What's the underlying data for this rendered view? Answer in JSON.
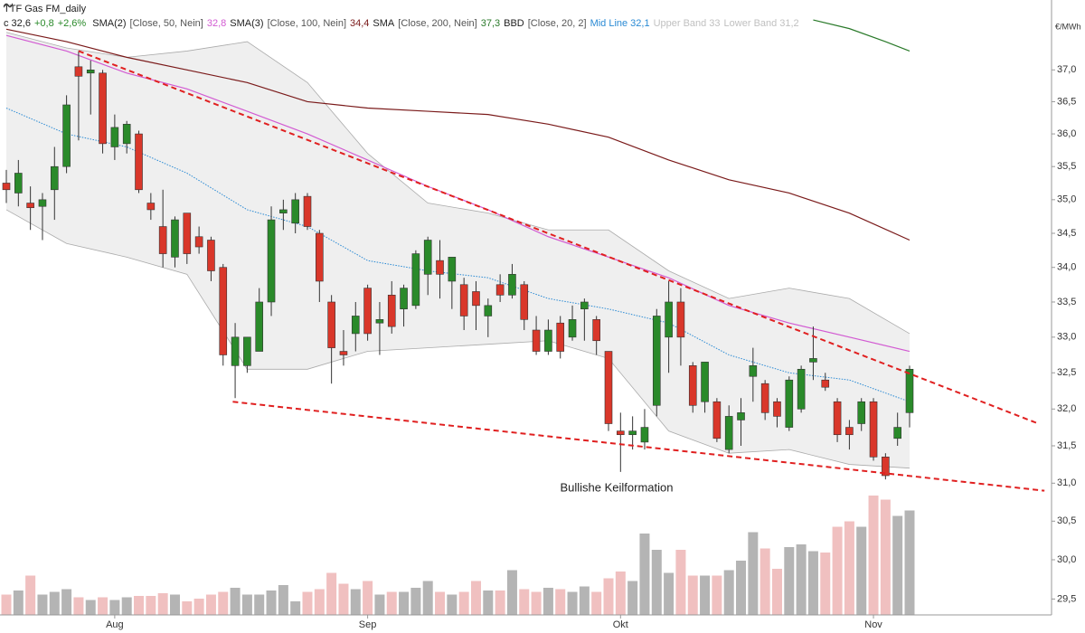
{
  "chart_data": {
    "type": "candlestick",
    "title": "TTF Gas FM_daily",
    "unit_label": "€/MWh",
    "quote": {
      "close": "c 32,6",
      "change": "+0,8",
      "change_pct": "+2,6%",
      "change_color": "#2a8a2a"
    },
    "log_scale": true,
    "ylim": [
      29.3,
      37.83
    ],
    "yticks": [
      {
        "value": 29.5,
        "label": "29,5"
      },
      {
        "value": 30,
        "label": "30,0"
      },
      {
        "value": 30.5,
        "label": "30,5"
      },
      {
        "value": 31,
        "label": "31,0"
      },
      {
        "value": 31.5,
        "label": "31,5"
      },
      {
        "value": 32,
        "label": "32,0"
      },
      {
        "value": 32.5,
        "label": "32,5"
      },
      {
        "value": 33,
        "label": "33,0"
      },
      {
        "value": 33.5,
        "label": "33,5"
      },
      {
        "value": 34,
        "label": "34,0"
      },
      {
        "value": 34.5,
        "label": "34,5"
      },
      {
        "value": 35,
        "label": "35,0"
      },
      {
        "value": 35.5,
        "label": "35,5"
      },
      {
        "value": 36,
        "label": "36,0"
      },
      {
        "value": 36.5,
        "label": "36,5"
      },
      {
        "value": 37,
        "label": "37,0"
      }
    ],
    "categories": [
      null,
      null,
      null,
      null,
      null,
      null,
      null,
      null,
      null,
      "Aug",
      null,
      null,
      null,
      null,
      null,
      null,
      null,
      null,
      null,
      null,
      null,
      null,
      null,
      null,
      null,
      null,
      null,
      null,
      null,
      null,
      "Sep",
      null,
      null,
      null,
      null,
      null,
      null,
      null,
      null,
      null,
      null,
      null,
      null,
      null,
      null,
      null,
      null,
      null,
      null,
      null,
      null,
      "Okt",
      null,
      null,
      null,
      null,
      null,
      null,
      null,
      null,
      null,
      null,
      null,
      null,
      null,
      null,
      null,
      null,
      null,
      null,
      null,
      null,
      "Nov",
      null,
      null,
      null
    ],
    "up_color": "#2a8a2a",
    "down_color": "#d9372a",
    "open": [
      35.25,
      35.1,
      34.95,
      34.9,
      35.15,
      35.5,
      37.05,
      36.95,
      36.95,
      35.8,
      35.85,
      36.0,
      34.95,
      34.6,
      34.15,
      34.8,
      34.45,
      34.4,
      34.0,
      32.6,
      32.6,
      32.8,
      33.5,
      34.8,
      34.65,
      35.05,
      34.5,
      33.5,
      32.8,
      33.05,
      33.7,
      33.2,
      33.6,
      33.4,
      33.45,
      33.9,
      34.1,
      33.8,
      33.75,
      33.65,
      33.3,
      33.75,
      33.6,
      33.75,
      33.1,
      32.8,
      33.2,
      33.0,
      33.4,
      33.25,
      32.8,
      31.7,
      31.65,
      31.55,
      32.05,
      33.0,
      33.5,
      32.6,
      32.1,
      32.1,
      31.45,
      31.85,
      32.45,
      32.35,
      32.1,
      31.75,
      32.0,
      32.65,
      32.4,
      32.1,
      31.75,
      31.8,
      32.1,
      31.35,
      31.6,
      31.95
    ],
    "high": [
      35.45,
      35.6,
      35.2,
      35.1,
      35.8,
      36.6,
      37.3,
      37.15,
      37.0,
      36.3,
      36.2,
      36.05,
      35.1,
      35.15,
      34.75,
      34.8,
      34.6,
      34.45,
      34.05,
      33.2,
      33.0,
      33.7,
      34.9,
      35.0,
      35.1,
      35.1,
      34.55,
      33.6,
      33.1,
      33.5,
      33.75,
      33.5,
      33.8,
      33.75,
      34.25,
      34.45,
      34.4,
      34.15,
      33.85,
      33.8,
      33.55,
      33.9,
      34.05,
      33.8,
      33.3,
      33.25,
      33.3,
      33.45,
      33.55,
      33.3,
      32.8,
      31.95,
      31.9,
      32.0,
      33.4,
      33.8,
      33.7,
      32.65,
      32.65,
      32.15,
      32.05,
      32.15,
      32.85,
      32.4,
      32.15,
      32.45,
      32.6,
      33.15,
      32.5,
      32.15,
      31.85,
      32.15,
      32.15,
      31.4,
      31.95,
      32.6
    ],
    "low": [
      34.95,
      34.9,
      34.55,
      34.4,
      34.7,
      35.4,
      35.9,
      36.3,
      35.7,
      35.6,
      35.7,
      35.1,
      34.7,
      34.0,
      34.0,
      34.05,
      34.2,
      33.8,
      32.6,
      32.15,
      32.5,
      32.8,
      33.3,
      34.55,
      34.5,
      34.55,
      33.5,
      32.35,
      32.6,
      32.8,
      32.95,
      32.75,
      33.05,
      33.15,
      33.4,
      33.6,
      33.55,
      33.4,
      33.1,
      33.1,
      33.0,
      33.5,
      33.55,
      33.1,
      32.75,
      32.75,
      32.7,
      32.95,
      32.95,
      32.75,
      31.7,
      31.15,
      31.45,
      31.45,
      31.9,
      32.5,
      32.6,
      31.95,
      31.95,
      31.55,
      31.4,
      31.5,
      32.1,
      31.85,
      31.75,
      31.7,
      31.95,
      32.4,
      32.25,
      31.55,
      31.45,
      31.7,
      31.3,
      31.05,
      31.5,
      31.75
    ],
    "close": [
      35.15,
      35.4,
      34.88,
      35.0,
      35.5,
      36.45,
      36.9,
      37.0,
      35.85,
      36.1,
      36.15,
      35.15,
      34.85,
      34.2,
      34.7,
      34.2,
      34.3,
      33.95,
      32.75,
      33.0,
      33.0,
      33.5,
      34.7,
      34.85,
      35.0,
      34.6,
      33.8,
      32.85,
      32.75,
      33.3,
      33.05,
      33.25,
      33.15,
      33.7,
      34.2,
      34.4,
      33.9,
      34.15,
      33.3,
      33.45,
      33.45,
      33.6,
      33.9,
      33.25,
      32.8,
      33.1,
      32.8,
      33.25,
      33.5,
      32.95,
      31.8,
      31.65,
      31.7,
      31.75,
      33.3,
      33.5,
      33.0,
      32.05,
      32.65,
      31.6,
      31.9,
      31.95,
      32.6,
      31.95,
      31.9,
      32.4,
      32.55,
      32.7,
      32.3,
      31.65,
      31.65,
      32.1,
      31.35,
      31.1,
      31.75,
      32.55
    ],
    "volume": {
      "ylim": [
        0,
        100
      ],
      "up_color": "#b4b4b4",
      "down_color": "#f0c0c0",
      "values": [
        15,
        18,
        29,
        15,
        17,
        19,
        13,
        11,
        13,
        11,
        13,
        14,
        14,
        16,
        15,
        10,
        12,
        15,
        17,
        20,
        15,
        15,
        18,
        22,
        10,
        17,
        19,
        31,
        23,
        19,
        25,
        15,
        17,
        17,
        20,
        25,
        17,
        15,
        17,
        25,
        18,
        18,
        33,
        19,
        17,
        20,
        19,
        17,
        21,
        17,
        27,
        32,
        25,
        60,
        48,
        31,
        48,
        29,
        29,
        29,
        33,
        40,
        61,
        49,
        34,
        50,
        52,
        47,
        46,
        65,
        69,
        65,
        88,
        85,
        73,
        77
      ]
    },
    "overlays": [
      {
        "name": "SMA(2)",
        "params": "[Close, 50, Nein]",
        "last": "32,8",
        "color": "#d25ad2",
        "x": [
          0,
          5,
          10,
          15,
          20,
          25,
          30,
          35,
          40,
          45,
          50,
          55,
          60,
          65,
          70,
          75
        ],
        "values": [
          37.55,
          37.3,
          36.95,
          36.7,
          36.35,
          36.0,
          35.6,
          35.2,
          34.85,
          34.45,
          34.15,
          33.85,
          33.45,
          33.2,
          33.0,
          32.8
        ]
      },
      {
        "name": "SMA(3)",
        "params": "[Close, 100, Nein]",
        "last": "34,4",
        "color": "#7a1a1a",
        "x": [
          0,
          5,
          10,
          15,
          20,
          25,
          30,
          35,
          40,
          45,
          50,
          55,
          60,
          65,
          70,
          75
        ],
        "values": [
          37.65,
          37.45,
          37.2,
          37.0,
          36.8,
          36.5,
          36.4,
          36.35,
          36.3,
          36.15,
          35.95,
          35.6,
          35.3,
          35.1,
          34.8,
          34.4
        ]
      },
      {
        "name": "SMA",
        "params": "[Close, 200, Nein]",
        "last": "37,3",
        "color": "#2a7a2a",
        "x": [
          67,
          70,
          73,
          75
        ],
        "values": [
          37.8,
          37.66,
          37.45,
          37.3
        ]
      }
    ],
    "bands": {
      "name": "BBD",
      "params": "[Close, 20, 2]",
      "fill": "#efefef",
      "x": [
        0,
        5,
        10,
        15,
        20,
        25,
        30,
        35,
        40,
        45,
        50,
        55,
        60,
        65,
        70,
        75
      ],
      "mid": {
        "name": "Mid Line",
        "last": "32,1",
        "color": "#2a8ad4",
        "values": [
          36.4,
          36.0,
          35.8,
          35.4,
          34.85,
          34.6,
          34.1,
          33.95,
          33.85,
          33.55,
          33.4,
          33.2,
          32.75,
          32.5,
          32.4,
          32.1
        ]
      },
      "upper": {
        "name": "Upper Band",
        "last": "33",
        "color": "#aaaaaa",
        "values": [
          37.6,
          37.35,
          37.2,
          37.3,
          37.45,
          36.8,
          35.7,
          34.95,
          34.8,
          34.55,
          34.55,
          33.95,
          33.55,
          33.7,
          33.55,
          33.05
        ]
      },
      "lower": {
        "name": "Lower Band",
        "last": "31,2",
        "color": "#aaaaaa",
        "values": [
          34.85,
          34.35,
          34.15,
          33.9,
          32.55,
          32.55,
          32.8,
          32.85,
          32.9,
          32.95,
          32.7,
          31.7,
          31.4,
          31.45,
          31.25,
          31.2
        ]
      }
    },
    "trendlines": [
      {
        "color": "#e02020",
        "x": [
          6,
          85.7
        ],
        "values": [
          37.3,
          31.8
        ]
      },
      {
        "color": "#e02020",
        "x": [
          18.8,
          86.2
        ],
        "values": [
          32.1,
          30.9
        ]
      }
    ],
    "annotation": "Bullishe Keilformation"
  }
}
